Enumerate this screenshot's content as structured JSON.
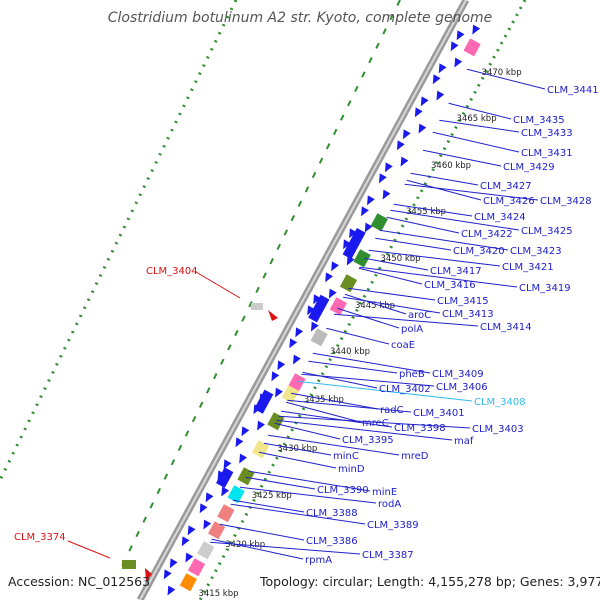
{
  "title": "Clostridium botulinum A2 str. Kyoto, complete genome",
  "accession": "Accession: NC_012563",
  "summary": "Topology: circular; Length: 4,155,278 bp; Genes: 3,977",
  "scale_labels": [
    "3470 kbp",
    "3465 kbp",
    "3460 kbp",
    "3455 kbp",
    "3450 kbp",
    "3445 kbp",
    "3440 kbp",
    "3435 kbp",
    "3430 kbp",
    "3425 kbp",
    "3420 kbp",
    "3415 kbp"
  ],
  "highlighted_labels": [
    "CLM_3404",
    "CLM_3374"
  ],
  "gene_labels": [
    "CLM_3441",
    "CLM_3435",
    "CLM_3433",
    "CLM_3431",
    "CLM_3429",
    "CLM_3427",
    "CLM_3426",
    "CLM_3428",
    "CLM_3424",
    "CLM_3425",
    "CLM_3422",
    "CLM_3420",
    "CLM_3423",
    "CLM_3421",
    "CLM_3417",
    "CLM_3419",
    "CLM_3416",
    "CLM_3415",
    "aroC",
    "CLM_3413",
    "CLM_3414",
    "polA",
    "coaE",
    "pheB",
    "CLM_3409",
    "CLM_3402",
    "CLM_3406",
    "CLM_3408",
    "radC",
    "CLM_3401",
    "mreC",
    "CLM_3398",
    "CLM_3403",
    "maf",
    "CLM_3395",
    "minC",
    "mreD",
    "minD",
    "CLM_3390",
    "minE",
    "rodA",
    "CLM_3388",
    "CLM_3389",
    "CLM_3386",
    "CLM_3387",
    "rpmA"
  ],
  "colors": {
    "gene_blue": "#1a1aee",
    "label_blue": "#2020cc",
    "highlight_red": "#dd1111",
    "selected_cyan": "#33bbee",
    "backbone": "#aaaaaa",
    "gc_green": "#2f8f2f",
    "dark_green": "#6b8e23",
    "pink": "#ff69b4",
    "salmon": "#f08080",
    "cyan_feature": "#00e5ee",
    "khaki": "#f0e68c"
  }
}
